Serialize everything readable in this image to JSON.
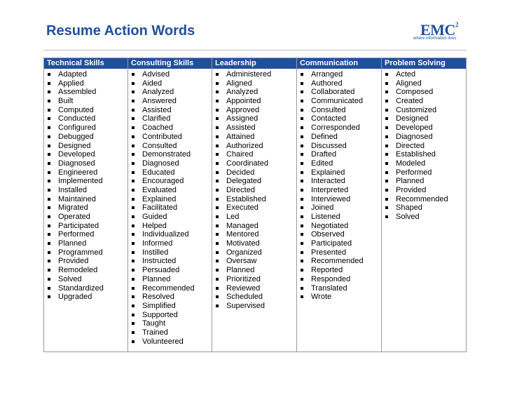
{
  "title": "Resume Action Words",
  "logo": {
    "name": "EMC",
    "superscript": "2",
    "tagline": "where information lives"
  },
  "colors": {
    "header_bg": "#1f4f9e",
    "title": "#1f4f9e",
    "border": "#9a9a9a"
  },
  "columns": [
    {
      "header": "Technical Skills",
      "words": [
        "Adapted",
        "Applied",
        "Assembled",
        "Built",
        "Computed",
        "Conducted",
        "Configured",
        "Debugged",
        "Designed",
        "Developed",
        "Diagnosed",
        "Engineered",
        "Implemented",
        "Installed",
        "Maintained",
        "Migrated",
        "Operated",
        "Participated",
        "Performed",
        "Planned",
        "Programmed",
        "Provided",
        "Remodeled",
        "Solved",
        "Standardized",
        "Upgraded"
      ]
    },
    {
      "header": "Consulting Skills",
      "words": [
        "Advised",
        "Aided",
        "Analyzed",
        "Answered",
        "Assisted",
        "Clarified",
        "Coached",
        "Contributed",
        "Consulted",
        "Demonstrated",
        "Diagnosed",
        "Educated",
        "Encouraged",
        "Evaluated",
        "Explained",
        "Facilitated",
        "Guided",
        "Helped",
        "Individualized",
        "Informed",
        "Instilled",
        "Instructed",
        "Persuaded",
        "Planned",
        "Recommended",
        "Resolved",
        "Simplified",
        "Supported",
        "Taught",
        "Trained",
        "Volunteered"
      ]
    },
    {
      "header": "Leadership",
      "words": [
        "Administered",
        "Aligned",
        "Analyzed",
        "Appointed",
        "Approved",
        "Assigned",
        "Assisted",
        "Attained",
        "Authorized",
        "Chaired",
        "Coordinated",
        "Decided",
        "Delegated",
        "Directed",
        "Established",
        "Executed",
        "Led",
        "Managed",
        "Mentored",
        "Motivated",
        "Organized",
        "Oversaw",
        "Planned",
        "Prioritized",
        "Reviewed",
        "Scheduled",
        "Supervised"
      ]
    },
    {
      "header": "Communication",
      "words": [
        "Arranged",
        "Authored",
        "Collaborated",
        "Communicated",
        "Consulted",
        "Contacted",
        "Corresponded",
        "Defined",
        "Discussed",
        "Drafted",
        "Edited",
        "Explained",
        "Interacted",
        "Interpreted",
        "Interviewed",
        "Joined",
        "Listened",
        "Negotiated",
        "Observed",
        "Participated",
        "Presented",
        "Recommended",
        "Reported",
        "Responded",
        "Translated",
        "Wrote"
      ]
    },
    {
      "header": "Problem Solving",
      "words": [
        "Acted",
        "Aligned",
        "Composed",
        "Created",
        "Customized",
        "Designed",
        "Developed",
        "Diagnosed",
        "Directed",
        "Established",
        "Modeled",
        "Performed",
        "Planned",
        "Provided",
        "Recommended",
        "Shaped",
        "Solved"
      ]
    }
  ]
}
